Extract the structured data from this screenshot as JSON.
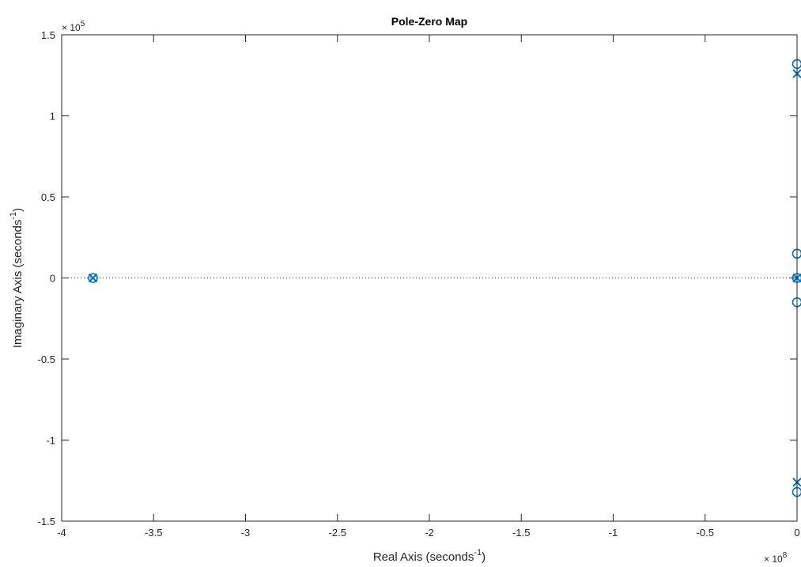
{
  "chart_data": {
    "type": "scatter",
    "title": "Pole-Zero Map",
    "xlabel": "Real Axis (seconds",
    "xlabel_sup": "-1",
    "xlabel_close": ")",
    "ylabel": "Imaginary Axis (seconds",
    "ylabel_sup": "-1",
    "ylabel_close": ")",
    "x_multiplier": {
      "base": "× 10",
      "exp": "8"
    },
    "y_multiplier": {
      "base": "× 10",
      "exp": "5"
    },
    "xlim": [
      -4,
      0
    ],
    "ylim": [
      -1.5,
      1.5
    ],
    "xticks": [
      -4,
      -3.5,
      -3,
      -2.5,
      -2,
      -1.5,
      -1,
      -0.5,
      0
    ],
    "xtick_labels": [
      "-4",
      "-3.5",
      "-3",
      "-2.5",
      "-2",
      "-1.5",
      "-1",
      "-0.5",
      "0"
    ],
    "yticks": [
      -1.5,
      -1,
      -0.5,
      0,
      0.5,
      1,
      1.5
    ],
    "ytick_labels": [
      "-1.5",
      "-1",
      "-0.5",
      "0",
      "0.5",
      "1",
      "1.5"
    ],
    "zero_line": true,
    "grid": false,
    "color": "#0072BD",
    "series": [
      {
        "marker": "x",
        "x": [
          -3.83,
          0,
          0,
          0
        ],
        "y": [
          0,
          1.26,
          0,
          -1.26
        ]
      },
      {
        "marker": "o",
        "x": [
          -3.83,
          0,
          0,
          0,
          0,
          0
        ],
        "y": [
          0,
          1.32,
          0.15,
          -0.15,
          0,
          -1.32
        ]
      }
    ]
  }
}
